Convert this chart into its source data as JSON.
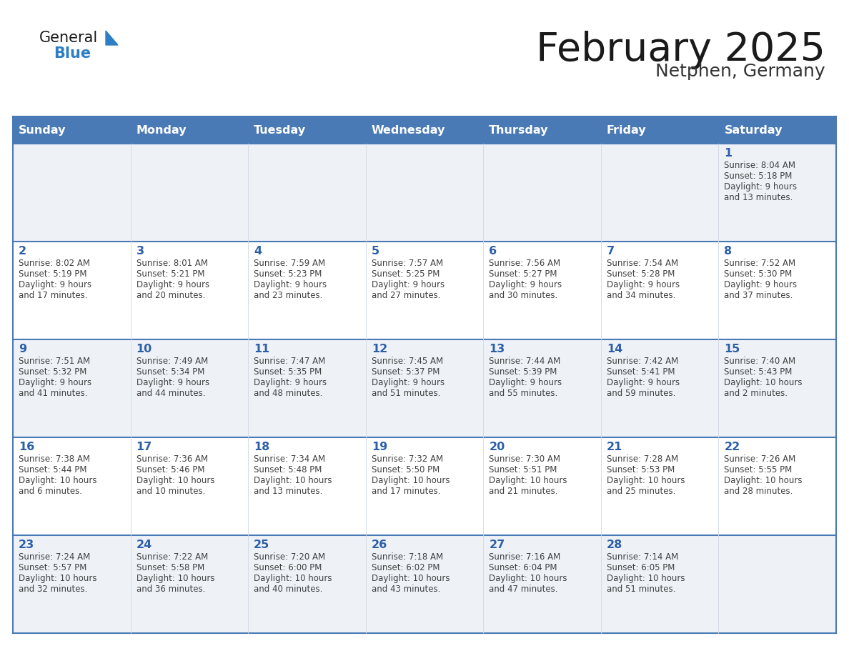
{
  "title": "February 2025",
  "subtitle": "Netphen, Germany",
  "days_of_week": [
    "Sunday",
    "Monday",
    "Tuesday",
    "Wednesday",
    "Thursday",
    "Friday",
    "Saturday"
  ],
  "header_bg": "#4a7ab5",
  "header_text_color": "#ffffff",
  "cell_bg_odd": "#eef2f7",
  "cell_bg_even": "#ffffff",
  "day_num_color": "#2d5fa8",
  "info_text_color": "#404040",
  "border_color": "#4a7ab5",
  "title_color": "#1a1a1a",
  "subtitle_color": "#333333",
  "logo_general_color": "#1a1a1a",
  "logo_blue_color": "#2d7ec4",
  "calendar_data": [
    [
      null,
      null,
      null,
      null,
      null,
      null,
      {
        "day": 1,
        "sunrise": "8:04 AM",
        "sunset": "5:18 PM",
        "daylight_hours": "9 hours",
        "daylight_mins": "and 13 minutes."
      }
    ],
    [
      {
        "day": 2,
        "sunrise": "8:02 AM",
        "sunset": "5:19 PM",
        "daylight_hours": "9 hours",
        "daylight_mins": "and 17 minutes."
      },
      {
        "day": 3,
        "sunrise": "8:01 AM",
        "sunset": "5:21 PM",
        "daylight_hours": "9 hours",
        "daylight_mins": "and 20 minutes."
      },
      {
        "day": 4,
        "sunrise": "7:59 AM",
        "sunset": "5:23 PM",
        "daylight_hours": "9 hours",
        "daylight_mins": "and 23 minutes."
      },
      {
        "day": 5,
        "sunrise": "7:57 AM",
        "sunset": "5:25 PM",
        "daylight_hours": "9 hours",
        "daylight_mins": "and 27 minutes."
      },
      {
        "day": 6,
        "sunrise": "7:56 AM",
        "sunset": "5:27 PM",
        "daylight_hours": "9 hours",
        "daylight_mins": "and 30 minutes."
      },
      {
        "day": 7,
        "sunrise": "7:54 AM",
        "sunset": "5:28 PM",
        "daylight_hours": "9 hours",
        "daylight_mins": "and 34 minutes."
      },
      {
        "day": 8,
        "sunrise": "7:52 AM",
        "sunset": "5:30 PM",
        "daylight_hours": "9 hours",
        "daylight_mins": "and 37 minutes."
      }
    ],
    [
      {
        "day": 9,
        "sunrise": "7:51 AM",
        "sunset": "5:32 PM",
        "daylight_hours": "9 hours",
        "daylight_mins": "and 41 minutes."
      },
      {
        "day": 10,
        "sunrise": "7:49 AM",
        "sunset": "5:34 PM",
        "daylight_hours": "9 hours",
        "daylight_mins": "and 44 minutes."
      },
      {
        "day": 11,
        "sunrise": "7:47 AM",
        "sunset": "5:35 PM",
        "daylight_hours": "9 hours",
        "daylight_mins": "and 48 minutes."
      },
      {
        "day": 12,
        "sunrise": "7:45 AM",
        "sunset": "5:37 PM",
        "daylight_hours": "9 hours",
        "daylight_mins": "and 51 minutes."
      },
      {
        "day": 13,
        "sunrise": "7:44 AM",
        "sunset": "5:39 PM",
        "daylight_hours": "9 hours",
        "daylight_mins": "and 55 minutes."
      },
      {
        "day": 14,
        "sunrise": "7:42 AM",
        "sunset": "5:41 PM",
        "daylight_hours": "9 hours",
        "daylight_mins": "and 59 minutes."
      },
      {
        "day": 15,
        "sunrise": "7:40 AM",
        "sunset": "5:43 PM",
        "daylight_hours": "10 hours",
        "daylight_mins": "and 2 minutes."
      }
    ],
    [
      {
        "day": 16,
        "sunrise": "7:38 AM",
        "sunset": "5:44 PM",
        "daylight_hours": "10 hours",
        "daylight_mins": "and 6 minutes."
      },
      {
        "day": 17,
        "sunrise": "7:36 AM",
        "sunset": "5:46 PM",
        "daylight_hours": "10 hours",
        "daylight_mins": "and 10 minutes."
      },
      {
        "day": 18,
        "sunrise": "7:34 AM",
        "sunset": "5:48 PM",
        "daylight_hours": "10 hours",
        "daylight_mins": "and 13 minutes."
      },
      {
        "day": 19,
        "sunrise": "7:32 AM",
        "sunset": "5:50 PM",
        "daylight_hours": "10 hours",
        "daylight_mins": "and 17 minutes."
      },
      {
        "day": 20,
        "sunrise": "7:30 AM",
        "sunset": "5:51 PM",
        "daylight_hours": "10 hours",
        "daylight_mins": "and 21 minutes."
      },
      {
        "day": 21,
        "sunrise": "7:28 AM",
        "sunset": "5:53 PM",
        "daylight_hours": "10 hours",
        "daylight_mins": "and 25 minutes."
      },
      {
        "day": 22,
        "sunrise": "7:26 AM",
        "sunset": "5:55 PM",
        "daylight_hours": "10 hours",
        "daylight_mins": "and 28 minutes."
      }
    ],
    [
      {
        "day": 23,
        "sunrise": "7:24 AM",
        "sunset": "5:57 PM",
        "daylight_hours": "10 hours",
        "daylight_mins": "and 32 minutes."
      },
      {
        "day": 24,
        "sunrise": "7:22 AM",
        "sunset": "5:58 PM",
        "daylight_hours": "10 hours",
        "daylight_mins": "and 36 minutes."
      },
      {
        "day": 25,
        "sunrise": "7:20 AM",
        "sunset": "6:00 PM",
        "daylight_hours": "10 hours",
        "daylight_mins": "and 40 minutes."
      },
      {
        "day": 26,
        "sunrise": "7:18 AM",
        "sunset": "6:02 PM",
        "daylight_hours": "10 hours",
        "daylight_mins": "and 43 minutes."
      },
      {
        "day": 27,
        "sunrise": "7:16 AM",
        "sunset": "6:04 PM",
        "daylight_hours": "10 hours",
        "daylight_mins": "and 47 minutes."
      },
      {
        "day": 28,
        "sunrise": "7:14 AM",
        "sunset": "6:05 PM",
        "daylight_hours": "10 hours",
        "daylight_mins": "and 51 minutes."
      },
      null
    ]
  ]
}
